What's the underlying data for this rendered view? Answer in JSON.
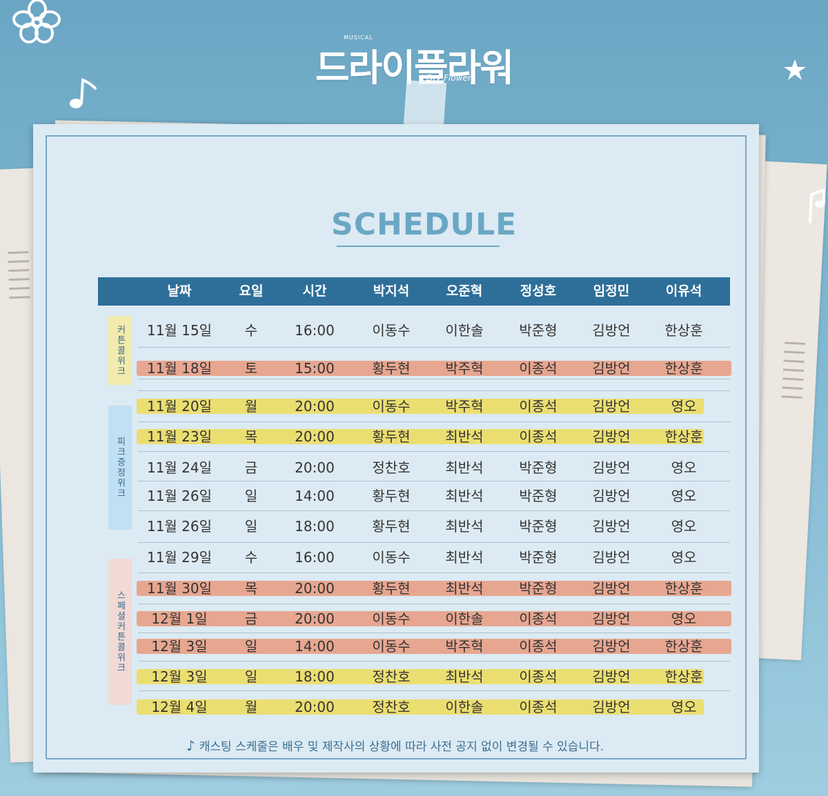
{
  "logo": {
    "musical": "MUSICAL",
    "title": "드라이플라워",
    "subtitle": "Dry Flower"
  },
  "schedule_title": "SCHEDULE",
  "headers": [
    "날짜",
    "요일",
    "시간",
    "박지석",
    "오준혁",
    "정성호",
    "임정민",
    "이유석"
  ],
  "side_labels": [
    "커튼콜위크",
    "피크증정위크",
    "스페셜커튼콜위크"
  ],
  "rows": [
    {
      "date": "11월 15일",
      "day": "수",
      "time": "16:00",
      "c1": "이동수",
      "c2": "이한솔",
      "c3": "박준형",
      "c4": "김방언",
      "c5": "한상훈",
      "highlight": "none"
    },
    {
      "date": "11월 18일",
      "day": "토",
      "time": "15:00",
      "c1": "황두현",
      "c2": "박주혁",
      "c3": "이종석",
      "c4": "김방언",
      "c5": "한상훈",
      "highlight": "orange"
    },
    {
      "date": "11월 20일",
      "day": "월",
      "time": "20:00",
      "c1": "이동수",
      "c2": "박주혁",
      "c3": "이종석",
      "c4": "김방언",
      "c5": "영오",
      "highlight": "yellow"
    },
    {
      "date": "11월 23일",
      "day": "목",
      "time": "20:00",
      "c1": "황두현",
      "c2": "최반석",
      "c3": "이종석",
      "c4": "김방언",
      "c5": "한상훈",
      "highlight": "yellow"
    },
    {
      "date": "11월 24일",
      "day": "금",
      "time": "20:00",
      "c1": "정찬호",
      "c2": "최반석",
      "c3": "박준형",
      "c4": "김방언",
      "c5": "영오",
      "highlight": "none"
    },
    {
      "date": "11월 26일",
      "day": "일",
      "time": "14:00",
      "c1": "황두현",
      "c2": "최반석",
      "c3": "박준형",
      "c4": "김방언",
      "c5": "영오",
      "highlight": "none"
    },
    {
      "date": "11월 26일",
      "day": "일",
      "time": "18:00",
      "c1": "황두현",
      "c2": "최반석",
      "c3": "박준형",
      "c4": "김방언",
      "c5": "영오",
      "highlight": "none"
    },
    {
      "date": "11월 29일",
      "day": "수",
      "time": "16:00",
      "c1": "이동수",
      "c2": "최반석",
      "c3": "박준형",
      "c4": "김방언",
      "c5": "영오",
      "highlight": "none"
    },
    {
      "date": "11월 30일",
      "day": "목",
      "time": "20:00",
      "c1": "황두현",
      "c2": "최반석",
      "c3": "박준형",
      "c4": "김방언",
      "c5": "한상훈",
      "highlight": "orange"
    },
    {
      "date": "12월 1일",
      "day": "금",
      "time": "20:00",
      "c1": "이동수",
      "c2": "이한솔",
      "c3": "이종석",
      "c4": "김방언",
      "c5": "영오",
      "highlight": "orange"
    },
    {
      "date": "12월 3일",
      "day": "일",
      "time": "14:00",
      "c1": "이동수",
      "c2": "박주혁",
      "c3": "이종석",
      "c4": "김방언",
      "c5": "한상훈",
      "highlight": "orange"
    },
    {
      "date": "12월 3일",
      "day": "일",
      "time": "18:00",
      "c1": "정찬호",
      "c2": "최반석",
      "c3": "이종석",
      "c4": "김방언",
      "c5": "한상훈",
      "highlight": "yellow"
    },
    {
      "date": "12월 4일",
      "day": "월",
      "time": "20:00",
      "c1": "정찬호",
      "c2": "이한솔",
      "c3": "이종석",
      "c4": "김방언",
      "c5": "영오",
      "highlight": "yellow"
    }
  ],
  "footer_note": "캐스팅 스케줄은 배우 및 제작사의 상황에 따라 사전 공지 없이 변경될 수 있습니다.",
  "colors": {
    "header_bg": "#2e6f99",
    "highlight_orange": "#e99a7e",
    "highlight_yellow": "#ecdd63",
    "side_yellow": "#f3ebad",
    "side_blue": "#c2e0f4",
    "side_pink": "#f1d9d5"
  }
}
